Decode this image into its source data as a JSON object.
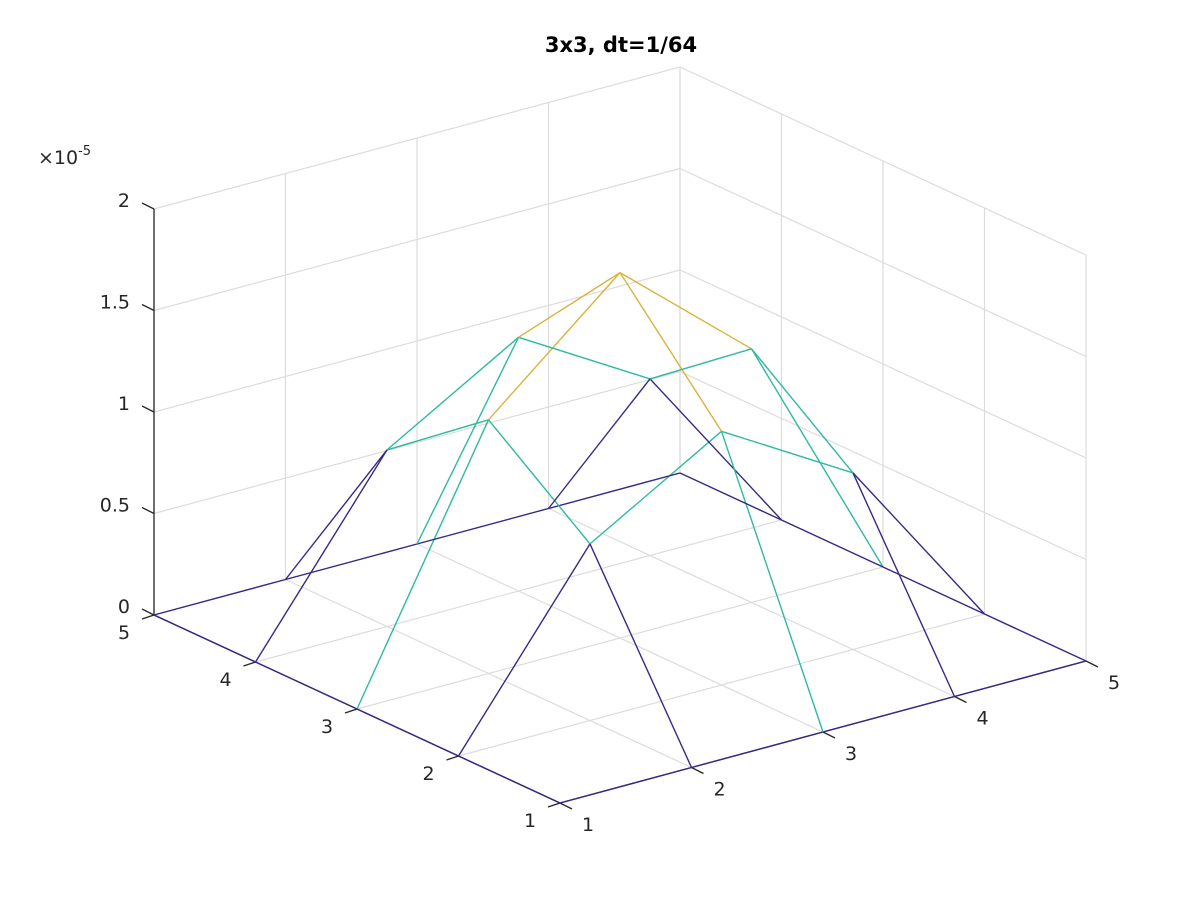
{
  "chart_data": {
    "type": "mesh",
    "title": "3x3, dt=1/64",
    "xlabel": "",
    "ylabel": "",
    "zlabel": "",
    "x": [
      1,
      2,
      3,
      4,
      5
    ],
    "y": [
      1,
      2,
      3,
      4,
      5
    ],
    "xlim": [
      1,
      5
    ],
    "ylim": [
      1,
      5
    ],
    "zlim": [
      0,
      2
    ],
    "z_exponent": "-5",
    "z_exponent_prefix": "×10",
    "x_ticks": [
      "1",
      "2",
      "3",
      "4",
      "5"
    ],
    "y_ticks": [
      "1",
      "2",
      "3",
      "4",
      "5"
    ],
    "z_ticks": [
      "0",
      "0.5",
      "1",
      "1.5",
      "2"
    ],
    "z_values_scaled": [
      [
        0,
        0,
        0,
        0,
        0
      ],
      [
        0,
        0.87,
        1.25,
        0.87,
        0
      ],
      [
        0,
        1.25,
        1.8,
        1.25,
        0
      ],
      [
        0,
        0.87,
        1.25,
        0.87,
        0
      ],
      [
        0,
        0,
        0,
        0,
        0
      ]
    ],
    "grid": true,
    "colormap": [
      "#352a87",
      "#2fb9a0",
      "#d8b33f",
      "#f9fb0e"
    ],
    "view": "3-D default (azimuth -37.5, elevation 30)"
  }
}
